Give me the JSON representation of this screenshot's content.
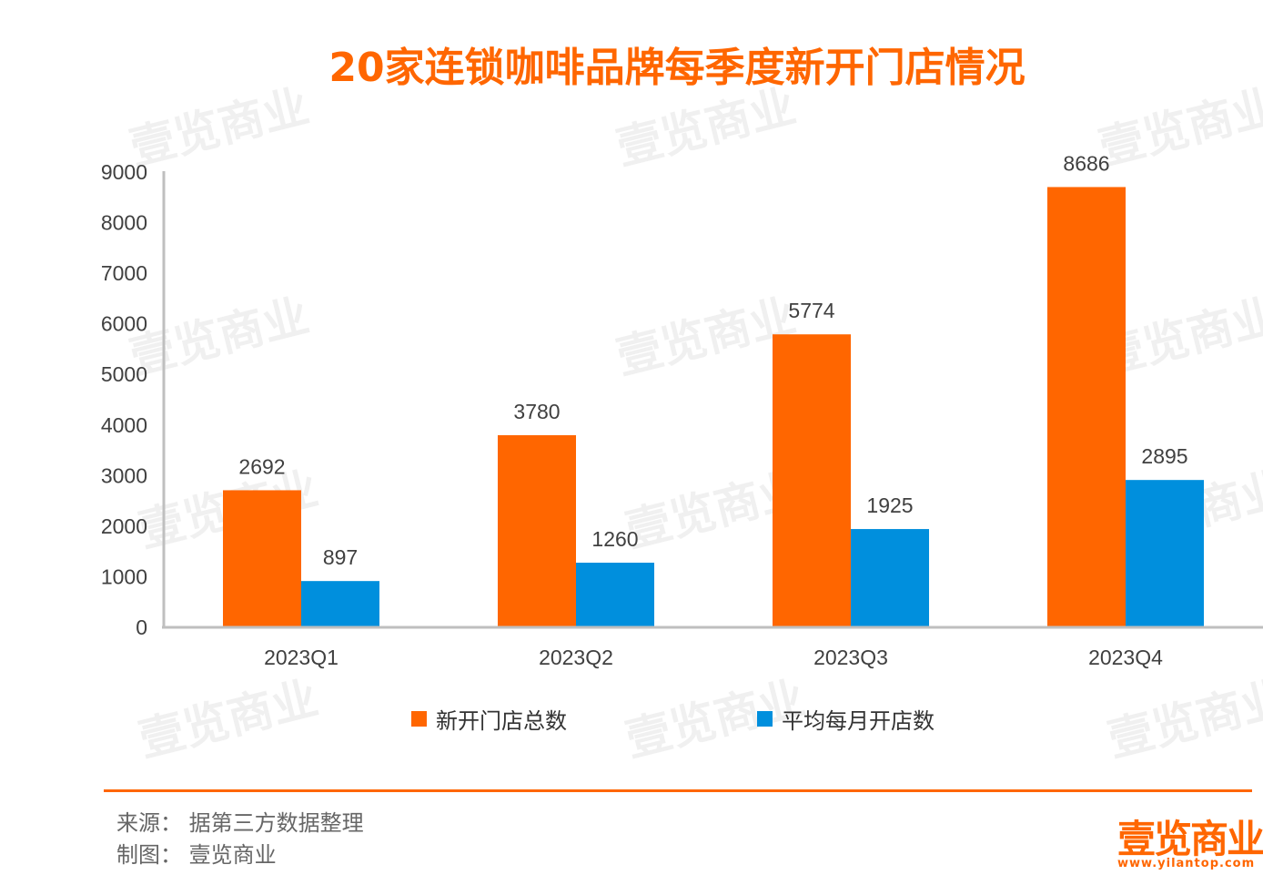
{
  "title": "20家连锁咖啡品牌每季度新开门店情况",
  "chart_data": {
    "type": "bar",
    "title": "20家连锁咖啡品牌每季度新开门店情况",
    "categories": [
      "2023Q1",
      "2023Q2",
      "2023Q3",
      "2023Q4"
    ],
    "series": [
      {
        "name": "新开门店总数",
        "values": [
          2692,
          3780,
          5774,
          8686
        ],
        "color": "#FF6600"
      },
      {
        "name": "平均每月开店数",
        "values": [
          897,
          1260,
          1925,
          2895
        ],
        "color": "#008FDD"
      }
    ],
    "ylim": [
      0,
      9000
    ],
    "yticks": [
      0,
      1000,
      2000,
      3000,
      4000,
      5000,
      6000,
      7000,
      8000,
      9000
    ],
    "grid": false,
    "legend_position": "bottom",
    "data_labels": true
  },
  "footer": {
    "source": "来源：  据第三方数据整理",
    "maker": "制图：  壹览商业"
  },
  "logo": {
    "name": "壹览商业",
    "url": "www.yilantop.com"
  },
  "watermark": "壹览商业",
  "colors": {
    "accent": "#FF6600",
    "secondary": "#008FDD"
  }
}
